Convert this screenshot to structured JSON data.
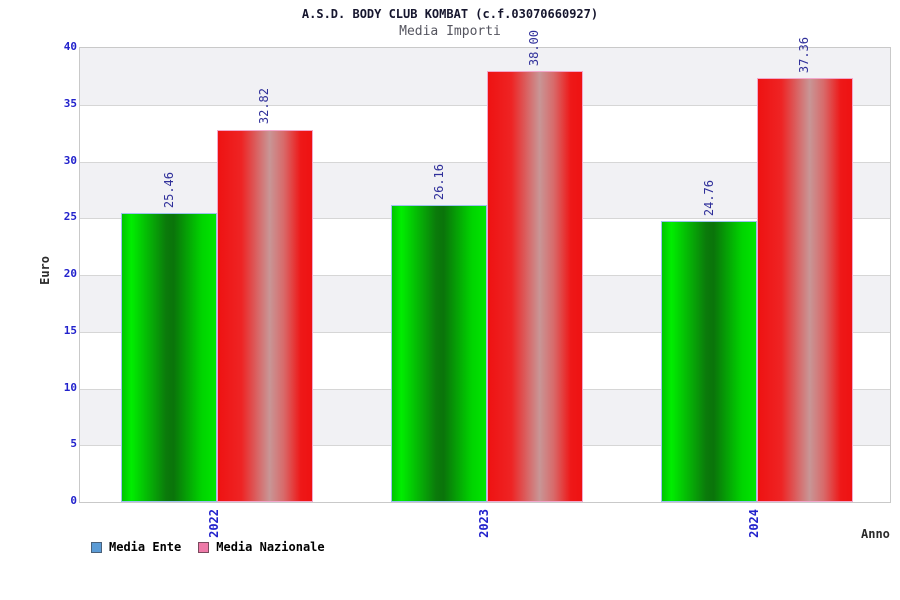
{
  "header": {
    "title": "A.S.D. BODY CLUB KOMBAT (c.f.03070660927)",
    "subtitle": "Media Importi"
  },
  "chart_data": {
    "type": "bar",
    "title": "A.S.D. BODY CLUB KOMBAT (c.f.03070660927)",
    "subtitle": "Media Importi",
    "categories": [
      "2022",
      "2023",
      "2024"
    ],
    "series": [
      {
        "name": "Media Ente",
        "values": [
          25.46,
          26.16,
          24.76
        ],
        "bar_color": "#00dd00",
        "bar_border_color": "#9cc2ee",
        "legend_fill": "#5b9bd5",
        "legend_border": "#4a617a"
      },
      {
        "name": "Media Nazionale",
        "values": [
          32.82,
          38.0,
          37.36
        ],
        "bar_color": "#ee1111",
        "bar_border_color": "#f2a8cc",
        "legend_fill": "#ee7aa8",
        "legend_border": "#7a4a5e"
      }
    ],
    "xlabel": "Anno",
    "ylabel": "Euro",
    "ylim": [
      0,
      40
    ],
    "ytick_step": 5,
    "yticks": [
      0,
      5,
      10,
      15,
      20,
      25,
      30,
      35,
      40
    ],
    "grid": "horizontal-bands-alternating",
    "band_colors": [
      "#f1f1f4",
      "#ffffff"
    ],
    "tick_label_color": "#2222cc",
    "value_label_color": "#30309a",
    "legend_position": "bottom-left",
    "value_label_format": "2-decimals",
    "value_label_rotation": "vertical-bottom-to-top"
  }
}
